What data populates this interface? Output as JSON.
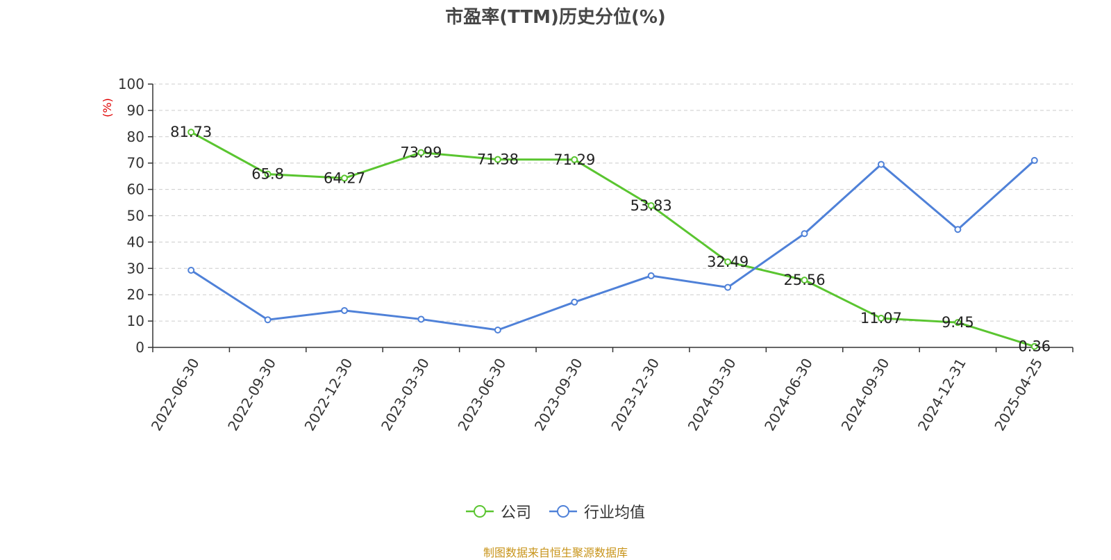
{
  "chart_data": {
    "type": "line",
    "title": "市盈率(TTM)历史分位(%)",
    "ylabel": "(%)",
    "ylim": [
      0,
      100
    ],
    "yticks": [
      0,
      10,
      20,
      30,
      40,
      50,
      60,
      70,
      80,
      90,
      100
    ],
    "grid": true,
    "legend_position": "bottom",
    "categories": [
      "2022-06-30",
      "2022-09-30",
      "2022-12-30",
      "2023-03-30",
      "2023-06-30",
      "2023-09-30",
      "2023-12-30",
      "2024-03-30",
      "2024-06-30",
      "2024-09-30",
      "2024-12-31",
      "2025-04-25"
    ],
    "series": [
      {
        "name": "公司",
        "color": "#5ac530",
        "values": [
          81.73,
          65.8,
          64.27,
          73.99,
          71.38,
          71.29,
          53.83,
          32.49,
          25.56,
          11.07,
          9.45,
          0.36
        ],
        "labels": [
          "81.73",
          "65.8",
          "64.27",
          "73.99",
          "71.38",
          "71.29",
          "53.83",
          "32.49",
          "25.56",
          "11.07",
          "9.45",
          "0.36"
        ]
      },
      {
        "name": "行业均值",
        "color": "#4f81d8",
        "values": [
          29.3,
          10.5,
          14.0,
          10.7,
          6.6,
          17.2,
          27.2,
          22.8,
          43.2,
          69.5,
          44.8,
          71.0
        ]
      }
    ]
  },
  "footer": {
    "source": "制图数据来自恒生聚源数据库"
  }
}
